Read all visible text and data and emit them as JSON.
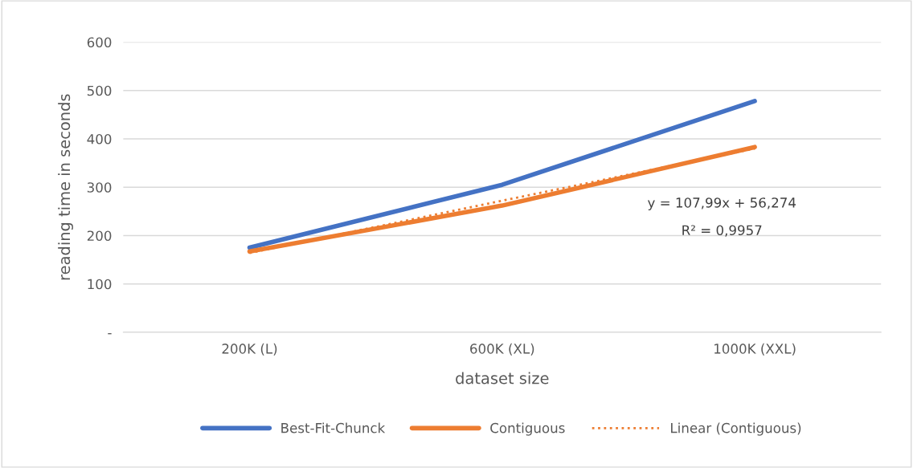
{
  "chart_data": {
    "type": "line",
    "xlabel": "dataset size",
    "ylabel": "reading time in seconds",
    "categories": [
      "200K (L)",
      "600K (XL)",
      "1000K (XXL)"
    ],
    "series": [
      {
        "name": "Best-Fit-Chunck",
        "color": "#4472c4",
        "values": [
          175,
          305,
          478
        ]
      },
      {
        "name": "Contiguous",
        "color": "#ed7d31",
        "values": [
          167,
          262,
          383
        ]
      },
      {
        "name": "Linear (Contiguous)",
        "color": "#ed7d31",
        "values": [
          164,
          272,
          380
        ],
        "line_style": "dotted"
      }
    ],
    "ylim": [
      0,
      600
    ],
    "yticks": [
      {
        "value": 0,
        "label": "-"
      },
      100,
      200,
      300,
      400,
      500,
      600
    ],
    "grid": "y",
    "legend": "bottom",
    "marker": "none",
    "line_style": "solid",
    "annotations": [
      "y = 107,99x + 56,274",
      "R² = 0,9957"
    ]
  }
}
